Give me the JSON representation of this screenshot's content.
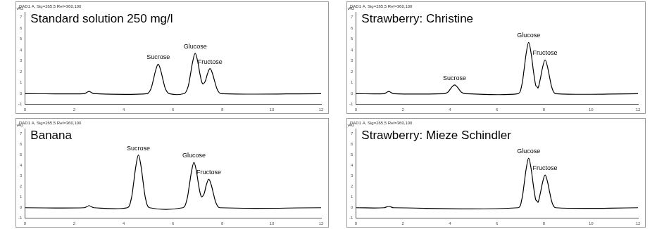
{
  "chart_data": [
    {
      "type": "line",
      "title": "Standard solution 250 mg/l",
      "subtitle": "DAD1 A, Sig=265,5 Ref=360,100",
      "y_label": "mAU",
      "color": "#000000",
      "grid": false,
      "xlim": [
        0,
        12
      ],
      "xticks": [
        0,
        2,
        4,
        6,
        8,
        10,
        12
      ],
      "ylim": [
        -1,
        7.5
      ],
      "yticks": [
        -1,
        0,
        1,
        2,
        3,
        4,
        5,
        6,
        7
      ],
      "x": [
        0,
        2.4,
        2.6,
        2.8,
        4.95,
        5.1,
        5.2,
        5.3,
        5.4,
        5.5,
        5.6,
        5.7,
        5.85,
        6.45,
        6.6,
        6.7,
        6.8,
        6.9,
        7.0,
        7.1,
        7.2,
        7.3,
        7.4,
        7.5,
        7.6,
        7.7,
        7.8,
        7.95,
        12
      ],
      "values": [
        0,
        0,
        0.2,
        0,
        0,
        0.41,
        1.22,
        2.16,
        2.7,
        2.16,
        1.22,
        0.41,
        0,
        0,
        0.56,
        1.67,
        2.96,
        3.7,
        2.96,
        1.72,
        0.9,
        1.1,
        1.84,
        2.3,
        1.84,
        1.04,
        0.35,
        0,
        0
      ],
      "annotations": [
        {
          "text": "Sucrose",
          "x": 5.4,
          "y": 2.7
        },
        {
          "text": "Glucose",
          "x": 6.9,
          "y": 3.7
        },
        {
          "text": "Fructose",
          "x": 7.5,
          "y": 2.3
        }
      ]
    },
    {
      "type": "line",
      "title": "Strawberry: Christine",
      "subtitle": "DAD1 A, Sig=265,5 Ref=360,100",
      "y_label": "mAU",
      "color": "#000000",
      "grid": false,
      "xlim": [
        0,
        12
      ],
      "xticks": [
        0,
        2,
        4,
        6,
        8,
        10,
        12
      ],
      "ylim": [
        -1,
        7.5
      ],
      "yticks": [
        -1,
        0,
        1,
        2,
        3,
        4,
        5,
        6,
        7
      ],
      "x": [
        0,
        1.2,
        1.4,
        1.6,
        3.75,
        3.9,
        4.0,
        4.1,
        4.2,
        4.3,
        4.4,
        4.5,
        4.65,
        6.9,
        7.05,
        7.15,
        7.25,
        7.35,
        7.45,
        7.55,
        7.65,
        7.7,
        7.75,
        7.85,
        7.95,
        8.05,
        8.15,
        8.25,
        8.35,
        8.5,
        12
      ],
      "values": [
        0,
        0,
        0.2,
        0,
        0,
        0.12,
        0.36,
        0.64,
        0.8,
        0.64,
        0.36,
        0.12,
        0,
        0,
        0.71,
        2.12,
        3.76,
        4.7,
        3.76,
        2.12,
        0.76,
        0.65,
        0.52,
        1.4,
        2.48,
        3.1,
        2.48,
        1.4,
        0.47,
        0,
        0
      ],
      "annotations": [
        {
          "text": "Sucrose",
          "x": 4.2,
          "y": 0.8
        },
        {
          "text": "Glucose",
          "x": 7.35,
          "y": 4.7
        },
        {
          "text": "Fructose",
          "x": 8.05,
          "y": 3.1
        }
      ]
    },
    {
      "type": "line",
      "title": "Banana",
      "subtitle": "DAD1 A, Sig=265,5 Ref=360,100",
      "y_label": "mAU",
      "color": "#000000",
      "grid": false,
      "xlim": [
        0,
        12
      ],
      "xticks": [
        0,
        2,
        4,
        6,
        8,
        10,
        12
      ],
      "ylim": [
        -1,
        7.5
      ],
      "yticks": [
        -1,
        0,
        1,
        2,
        3,
        4,
        5,
        6,
        7
      ],
      "x": [
        0,
        2.4,
        2.6,
        2.8,
        4.15,
        4.3,
        4.4,
        4.5,
        4.6,
        4.7,
        4.8,
        4.9,
        5.05,
        6.4,
        6.55,
        6.65,
        6.75,
        6.85,
        6.95,
        7.05,
        7.15,
        7.25,
        7.35,
        7.45,
        7.55,
        7.65,
        7.75,
        7.9,
        12
      ],
      "values": [
        0,
        0,
        0.2,
        0,
        0,
        0.75,
        2.25,
        4.0,
        5.0,
        4.0,
        2.25,
        0.75,
        0,
        0,
        0.65,
        1.94,
        3.44,
        4.3,
        3.44,
        1.99,
        1.05,
        1.26,
        2.16,
        2.7,
        2.16,
        1.22,
        0.41,
        0,
        0
      ],
      "annotations": [
        {
          "text": "Sucrose",
          "x": 4.6,
          "y": 5.0
        },
        {
          "text": "Glucose",
          "x": 6.85,
          "y": 4.3
        },
        {
          "text": "Fructose",
          "x": 7.45,
          "y": 2.7
        }
      ]
    },
    {
      "type": "line",
      "title": "Strawberry: Mieze Schindler",
      "subtitle": "DAD1 A, Sig=265,5 Ref=360,100",
      "y_label": "mAU",
      "color": "#000000",
      "grid": false,
      "xlim": [
        0,
        12
      ],
      "xticks": [
        0,
        2,
        4,
        6,
        8,
        10,
        12
      ],
      "ylim": [
        -1,
        7.5
      ],
      "yticks": [
        -1,
        0,
        1,
        2,
        3,
        4,
        5,
        6,
        7
      ],
      "x": [
        0,
        1.2,
        1.4,
        1.6,
        6.9,
        7.05,
        7.15,
        7.25,
        7.35,
        7.45,
        7.55,
        7.65,
        7.7,
        7.75,
        7.85,
        7.95,
        8.05,
        8.15,
        8.25,
        8.35,
        8.5,
        12
      ],
      "values": [
        0,
        0,
        0.15,
        0,
        0,
        0.71,
        2.12,
        3.76,
        4.7,
        3.76,
        2.12,
        0.76,
        0.65,
        0.52,
        1.4,
        2.48,
        3.1,
        2.48,
        1.4,
        0.47,
        0,
        0
      ],
      "annotations": [
        {
          "text": "Glucose",
          "x": 7.35,
          "y": 4.7
        },
        {
          "text": "Fructose",
          "x": 8.05,
          "y": 3.1
        }
      ]
    }
  ]
}
